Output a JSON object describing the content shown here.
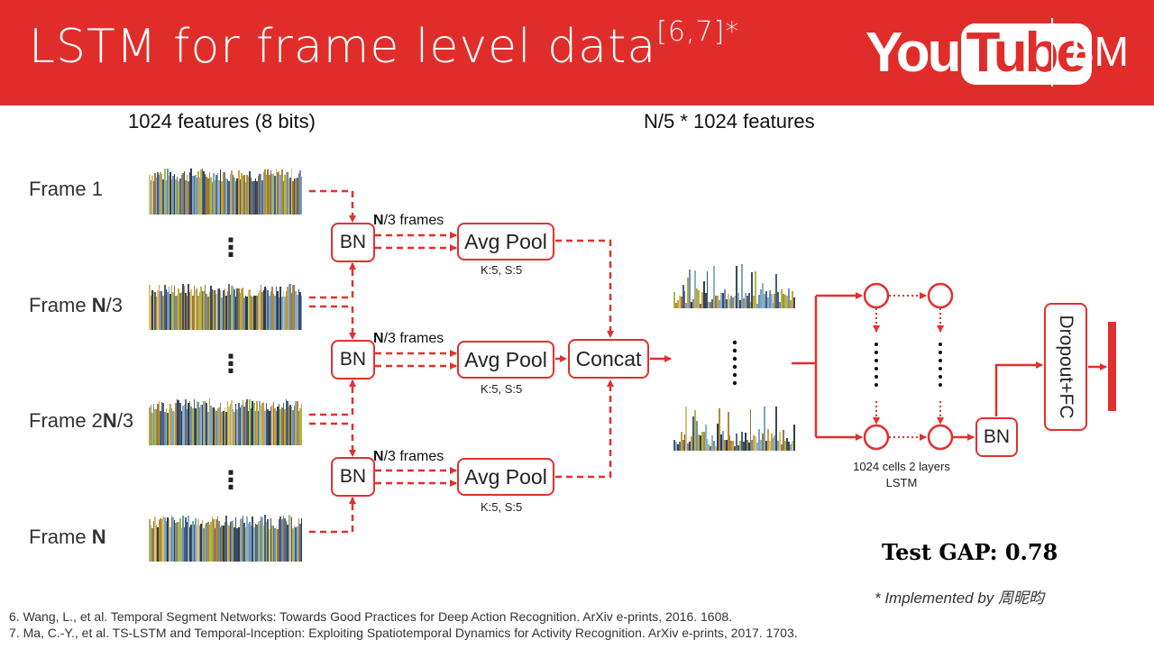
{
  "header": {
    "title": "LSTM for frame level data",
    "title_refs": "[6,7]*",
    "brand_you": "You",
    "brand_tube": "Tube",
    "brand_suffix": "8M"
  },
  "diagram": {
    "input_heading": "1024 features (8 bits)",
    "pooled_heading": "N/5 * 1024 features",
    "frames": [
      {
        "prefix": "Frame ",
        "bold": "1",
        "suffix": ""
      },
      {
        "prefix": "Frame ",
        "bold": "N",
        "suffix": "/3"
      },
      {
        "prefix": "Frame 2",
        "bold": "N",
        "suffix": "/3"
      },
      {
        "prefix": "Frame ",
        "bold": "N",
        "suffix": ""
      }
    ],
    "ellipsis": "⋮",
    "bn_label": "BN",
    "group_bold": "N",
    "group_suffix": "/3 frames",
    "pool_label": "Avg Pool",
    "pool_params": "K:5, S:5",
    "concat_label": "Concat",
    "lstm_caption_line1": "1024 cells 2 layers",
    "lstm_caption_line2": "LSTM",
    "head_bn_label": "BN",
    "dropout_fc_label": "Dropout+FC"
  },
  "result": {
    "test_gap": "Test GAP: 0.78",
    "implemented_by": "* Implemented by 周昵昀"
  },
  "references": [
    "6. Wang, L., et al. Temporal Segment Networks: Towards Good Practices for Deep Action Recognition. ArXiv e-prints, 2016. 1608.",
    "7. Ma, C.-Y., et al. TS-LSTM and Temporal-Inception: Exploiting Spatiotemporal Dynamics for Activity Recognition. ArXiv e-prints, 2017. 1703."
  ],
  "colors": {
    "header_red": "#e12d2a",
    "accent_red": "#e0312c",
    "feature_palette": [
      "#4a5d7a",
      "#c9a13b",
      "#6f8fb4",
      "#2c3e55",
      "#9a7a3a",
      "#7aa6c4",
      "#d9c27a",
      "#3b4a63",
      "#b3893c",
      "#8ab0c8",
      "#5c6b80",
      "#a8b84c"
    ]
  },
  "icons": [
    "youtube-logo",
    "dotted-lstm-connector",
    "dashed-arrow"
  ]
}
